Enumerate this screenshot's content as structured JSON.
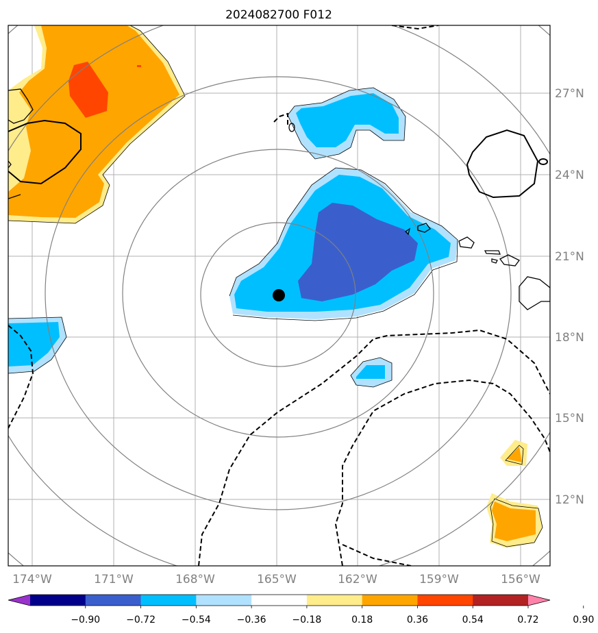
{
  "title": "2024082700 F012",
  "map": {
    "lon_ticks": [
      "174°W",
      "171°W",
      "168°W",
      "165°W",
      "162°W",
      "159°W",
      "156°W"
    ],
    "lat_ticks": [
      "27°N",
      "24°N",
      "21°N",
      "18°N",
      "15°N",
      "12°N"
    ],
    "grid": true,
    "storm_center": "filled-black-dot",
    "range_rings": 5
  },
  "colorbar": {
    "colors": [
      "#9932cc",
      "#00008b",
      "#3a5fcd",
      "#00bfff",
      "#b0e2ff",
      "#ffffff",
      "#ffec8b",
      "#ffa500",
      "#ff4500",
      "#b22222",
      "#ff82ab"
    ],
    "labels": [
      "−0.90",
      "−0.72",
      "−0.54",
      "−0.36",
      "−0.18",
      "0.18",
      "0.36",
      "0.54",
      "0.72",
      "0.90"
    ]
  },
  "colors": {
    "light_blue": "#b0e2ff",
    "blue": "#00bfff",
    "dark_blue": "#3a5fcd",
    "light_yellow": "#ffec8b",
    "orange": "#ffa500",
    "red_orange": "#ff4500",
    "grid": "#b0b0b0",
    "ring": "#808080"
  }
}
